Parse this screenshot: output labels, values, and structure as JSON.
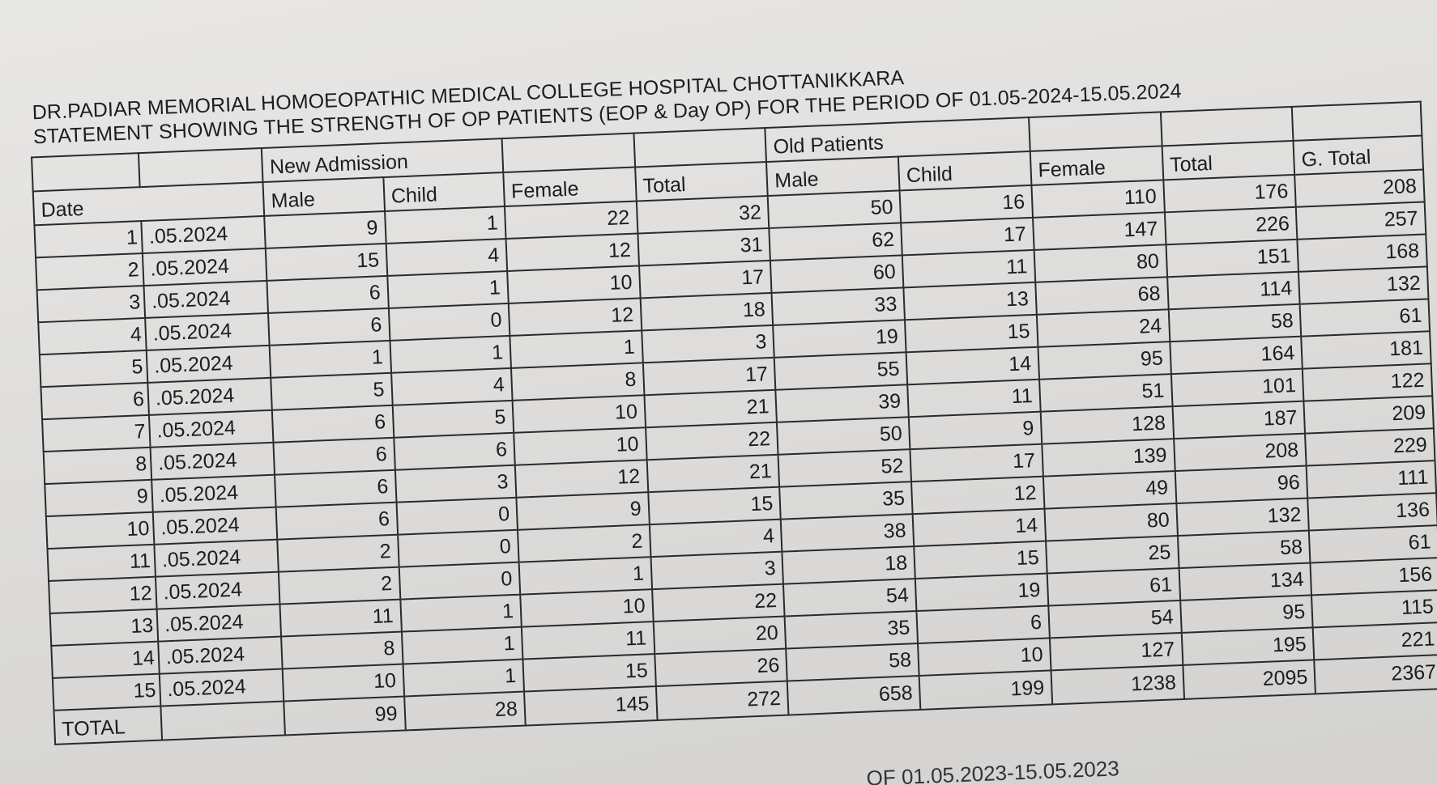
{
  "document": {
    "title_line1": "DR.PADIAR MEMORIAL HOMOEOPATHIC MEDICAL COLLEGE HOSPITAL CHOTTANIKKARA",
    "title_line2": "STATEMENT SHOWING THE STRENGTH OF OP PATIENTS (EOP & Day OP) FOR THE  PERIOD  OF 01.05-2024-15.05.2024",
    "next_section_partial": "OF 01.05.2023-15.05.2023"
  },
  "headers": {
    "date": "Date",
    "new_admission": "New Admission",
    "old_patients": "Old Patients",
    "male": "Male",
    "child": "Child",
    "female": "Female",
    "total": "Total",
    "g_total": "G. Total",
    "total_row": "TOTAL"
  },
  "rows": [
    {
      "day": "1",
      "date": ".05.2024",
      "new_male": "9",
      "new_child": "1",
      "new_female": "22",
      "new_total": "32",
      "old_male": "50",
      "old_child": "16",
      "old_female": "110",
      "old_total": "176",
      "g_total": "208"
    },
    {
      "day": "2",
      "date": ".05.2024",
      "new_male": "15",
      "new_child": "4",
      "new_female": "12",
      "new_total": "31",
      "old_male": "62",
      "old_child": "17",
      "old_female": "147",
      "old_total": "226",
      "g_total": "257"
    },
    {
      "day": "3",
      "date": ".05.2024",
      "new_male": "6",
      "new_child": "1",
      "new_female": "10",
      "new_total": "17",
      "old_male": "60",
      "old_child": "11",
      "old_female": "80",
      "old_total": "151",
      "g_total": "168"
    },
    {
      "day": "4",
      "date": ".05.2024",
      "new_male": "6",
      "new_child": "0",
      "new_female": "12",
      "new_total": "18",
      "old_male": "33",
      "old_child": "13",
      "old_female": "68",
      "old_total": "114",
      "g_total": "132"
    },
    {
      "day": "5",
      "date": ".05.2024",
      "new_male": "1",
      "new_child": "1",
      "new_female": "1",
      "new_total": "3",
      "old_male": "19",
      "old_child": "15",
      "old_female": "24",
      "old_total": "58",
      "g_total": "61"
    },
    {
      "day": "6",
      "date": ".05.2024",
      "new_male": "5",
      "new_child": "4",
      "new_female": "8",
      "new_total": "17",
      "old_male": "55",
      "old_child": "14",
      "old_female": "95",
      "old_total": "164",
      "g_total": "181"
    },
    {
      "day": "7",
      "date": ".05.2024",
      "new_male": "6",
      "new_child": "5",
      "new_female": "10",
      "new_total": "21",
      "old_male": "39",
      "old_child": "11",
      "old_female": "51",
      "old_total": "101",
      "g_total": "122"
    },
    {
      "day": "8",
      "date": ".05.2024",
      "new_male": "6",
      "new_child": "6",
      "new_female": "10",
      "new_total": "22",
      "old_male": "50",
      "old_child": "9",
      "old_female": "128",
      "old_total": "187",
      "g_total": "209"
    },
    {
      "day": "9",
      "date": ".05.2024",
      "new_male": "6",
      "new_child": "3",
      "new_female": "12",
      "new_total": "21",
      "old_male": "52",
      "old_child": "17",
      "old_female": "139",
      "old_total": "208",
      "g_total": "229"
    },
    {
      "day": "10",
      "date": ".05.2024",
      "new_male": "6",
      "new_child": "0",
      "new_female": "9",
      "new_total": "15",
      "old_male": "35",
      "old_child": "12",
      "old_female": "49",
      "old_total": "96",
      "g_total": "111"
    },
    {
      "day": "11",
      "date": ".05.2024",
      "new_male": "2",
      "new_child": "0",
      "new_female": "2",
      "new_total": "4",
      "old_male": "38",
      "old_child": "14",
      "old_female": "80",
      "old_total": "132",
      "g_total": "136"
    },
    {
      "day": "12",
      "date": ".05.2024",
      "new_male": "2",
      "new_child": "0",
      "new_female": "1",
      "new_total": "3",
      "old_male": "18",
      "old_child": "15",
      "old_female": "25",
      "old_total": "58",
      "g_total": "61"
    },
    {
      "day": "13",
      "date": ".05.2024",
      "new_male": "11",
      "new_child": "1",
      "new_female": "10",
      "new_total": "22",
      "old_male": "54",
      "old_child": "19",
      "old_female": "61",
      "old_total": "134",
      "g_total": "156"
    },
    {
      "day": "14",
      "date": ".05.2024",
      "new_male": "8",
      "new_child": "1",
      "new_female": "11",
      "new_total": "20",
      "old_male": "35",
      "old_child": "6",
      "old_female": "54",
      "old_total": "95",
      "g_total": "115"
    },
    {
      "day": "15",
      "date": ".05.2024",
      "new_male": "10",
      "new_child": "1",
      "new_female": "15",
      "new_total": "26",
      "old_male": "58",
      "old_child": "10",
      "old_female": "127",
      "old_total": "195",
      "g_total": "221"
    }
  ],
  "totals": {
    "new_male": "99",
    "new_child": "28",
    "new_female": "145",
    "new_total": "272",
    "old_male": "658",
    "old_child": "199",
    "old_female": "1238",
    "old_total": "2095",
    "g_total": "2367"
  }
}
